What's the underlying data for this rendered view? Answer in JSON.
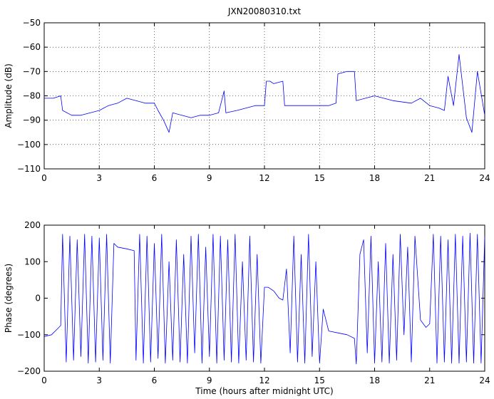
{
  "colors": {
    "series": "#0000ff",
    "axes": "#000000",
    "background": "#ffffff"
  },
  "chart_data": [
    {
      "type": "line",
      "title": "JXN20080310.txt",
      "xlabel": "",
      "ylabel": "Amplitude (dB)",
      "xlim": [
        0,
        24
      ],
      "ylim": [
        -110,
        -50
      ],
      "xticks": [
        0,
        3,
        6,
        9,
        12,
        15,
        18,
        21,
        24
      ],
      "yticks": [
        -110,
        -100,
        -90,
        -80,
        -70,
        -60,
        -50
      ],
      "xtick_labels": [
        "0",
        "3",
        "6",
        "9",
        "12",
        "15",
        "18",
        "21",
        "24"
      ],
      "ytick_labels": [
        "−110",
        "−100",
        "−90",
        "−80",
        "−70",
        "−60",
        "−50"
      ],
      "grid": true,
      "series": [
        {
          "color": "#0000ff",
          "x": [
            0,
            0.5,
            0.9,
            1.0,
            1.5,
            2.0,
            2.5,
            3.0,
            3.5,
            4.0,
            4.5,
            5.0,
            5.5,
            6.0,
            6.2,
            6.5,
            6.8,
            7.0,
            7.5,
            8.0,
            8.5,
            9.0,
            9.5,
            9.8,
            9.9,
            10.5,
            11.0,
            11.5,
            12.0,
            12.1,
            12.3,
            12.5,
            13.0,
            13.1,
            13.5,
            14.0,
            15.0,
            15.5,
            15.9,
            16.0,
            16.5,
            16.9,
            17.0,
            17.5,
            18.0,
            19.0,
            20.0,
            20.5,
            21.0,
            21.5,
            21.8,
            22.0,
            22.3,
            22.6,
            23.0,
            23.3,
            23.6,
            24.0
          ],
          "y": [
            -81,
            -81,
            -80,
            -86,
            -88,
            -88,
            -87,
            -86,
            -84,
            -83,
            -81,
            -82,
            -83,
            -83,
            -86,
            -90,
            -95,
            -87,
            -88,
            -89,
            -88,
            -88,
            -87,
            -78,
            -87,
            -86,
            -85,
            -84,
            -84,
            -74,
            -74,
            -75,
            -74,
            -84,
            -84,
            -84,
            -84,
            -84,
            -83,
            -71,
            -70,
            -70,
            -82,
            -81,
            -80,
            -82,
            -83,
            -81,
            -84,
            -85,
            -86,
            -72,
            -84,
            -63,
            -89,
            -95,
            -70,
            -88
          ]
        }
      ]
    },
    {
      "type": "line",
      "title": "",
      "xlabel": "Time (hours after midnight UTC)",
      "ylabel": "Phase (degrees)",
      "xlim": [
        0,
        24
      ],
      "ylim": [
        -200,
        200
      ],
      "xticks": [
        0,
        3,
        6,
        9,
        12,
        15,
        18,
        21,
        24
      ],
      "yticks": [
        -200,
        -100,
        0,
        100,
        200
      ],
      "xtick_labels": [
        "0",
        "3",
        "6",
        "9",
        "12",
        "15",
        "18",
        "21",
        "24"
      ],
      "ytick_labels": [
        "−200",
        "−100",
        "0",
        "100",
        "200"
      ],
      "grid": false,
      "series": [
        {
          "color": "#0000ff",
          "x": [
            0,
            0.4,
            0.8,
            0.9,
            1.0,
            1.2,
            1.4,
            1.6,
            1.8,
            2.0,
            2.2,
            2.4,
            2.6,
            2.8,
            3.0,
            3.2,
            3.4,
            3.6,
            3.8,
            4.0,
            4.5,
            4.9,
            5.0,
            5.2,
            5.4,
            5.6,
            5.8,
            6.0,
            6.2,
            6.4,
            6.6,
            6.8,
            7.0,
            7.2,
            7.4,
            7.6,
            7.8,
            8.0,
            8.2,
            8.4,
            8.6,
            8.8,
            9.0,
            9.2,
            9.4,
            9.6,
            9.8,
            10.0,
            10.2,
            10.4,
            10.6,
            10.8,
            11.0,
            11.2,
            11.4,
            11.6,
            11.8,
            12.0,
            12.2,
            12.5,
            12.8,
            13.0,
            13.2,
            13.4,
            13.6,
            13.8,
            14.0,
            14.2,
            14.4,
            14.6,
            14.8,
            15.0,
            15.2,
            15.5,
            16.0,
            16.5,
            16.9,
            17.0,
            17.2,
            17.4,
            17.6,
            17.8,
            18.0,
            18.2,
            18.4,
            18.6,
            18.8,
            19.0,
            19.2,
            19.4,
            19.6,
            19.8,
            20.0,
            20.2,
            20.5,
            20.8,
            21.0,
            21.2,
            21.4,
            21.6,
            21.8,
            22.0,
            22.2,
            22.4,
            22.6,
            22.8,
            23.0,
            23.2,
            23.4,
            23.6,
            23.8,
            24.0
          ],
          "y": [
            -105,
            -100,
            -80,
            -75,
            175,
            -175,
            170,
            -170,
            160,
            -160,
            175,
            -178,
            170,
            -175,
            165,
            -170,
            175,
            -178,
            150,
            140,
            135,
            130,
            -170,
            175,
            -178,
            170,
            -175,
            150,
            -165,
            175,
            -178,
            100,
            -170,
            160,
            -175,
            120,
            -178,
            170,
            -150,
            175,
            -178,
            140,
            -160,
            175,
            -178,
            170,
            -170,
            160,
            -175,
            175,
            -178,
            100,
            -170,
            170,
            -175,
            120,
            -178,
            30,
            30,
            20,
            0,
            -5,
            80,
            -150,
            170,
            -175,
            120,
            -178,
            175,
            -160,
            100,
            -178,
            -30,
            -90,
            -95,
            -100,
            -110,
            -180,
            120,
            160,
            -150,
            170,
            -178,
            100,
            -175,
            150,
            -178,
            120,
            -170,
            175,
            -100,
            140,
            -175,
            170,
            -60,
            -80,
            -70,
            175,
            -178,
            170,
            -175,
            160,
            -178,
            175,
            -178,
            170,
            -175,
            178,
            -178,
            175,
            -178,
            170
          ]
        }
      ]
    }
  ]
}
